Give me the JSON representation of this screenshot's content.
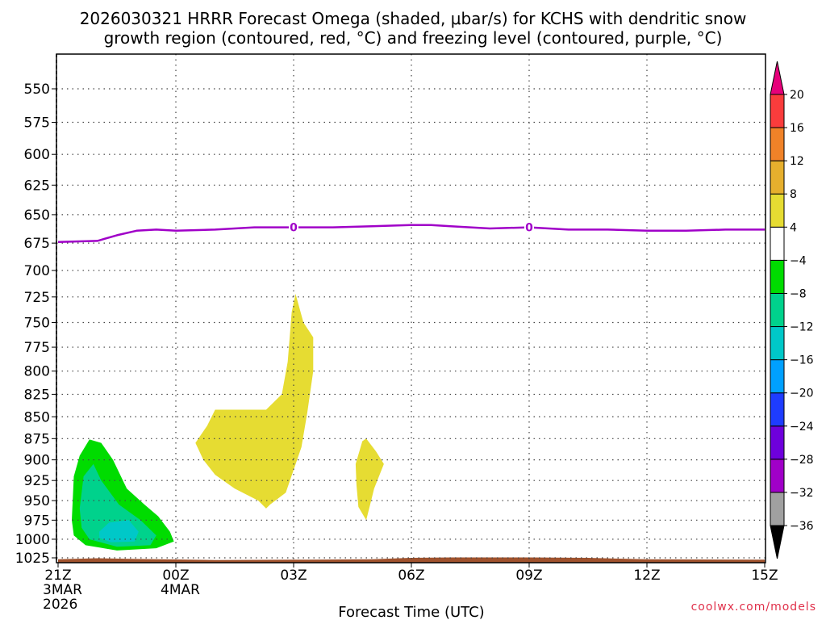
{
  "title_line1": "2026030321 HRRR Forecast Omega (shaded, μbar/s) for KCHS with dendritic snow",
  "title_line2": "growth region (contoured, red, °C) and freezing level (contoured, purple, °C)",
  "credit": "coolwx.com/models",
  "chart_data": {
    "type": "time-height cross section",
    "title": "2026030321 HRRR Forecast Omega (shaded, μbar/s) for KCHS with dendritic snow growth region (contoured, red, °C) and freezing level (contoured, purple, °C)",
    "xlabel": "Forecast Time (UTC)",
    "ylabel": "",
    "xlim_hours": [
      0,
      18
    ],
    "ylim_hpa": [
      535,
      1035
    ],
    "y_scale": "log-pressure, inverted",
    "grid": true,
    "x_ticks": [
      {
        "hour": 0,
        "label": "21Z",
        "sub1": "3MAR",
        "sub2": "2026"
      },
      {
        "hour": 3,
        "label": "00Z",
        "sub1": "4MAR",
        "sub2": ""
      },
      {
        "hour": 6,
        "label": "03Z",
        "sub1": "",
        "sub2": ""
      },
      {
        "hour": 9,
        "label": "06Z",
        "sub1": "",
        "sub2": ""
      },
      {
        "hour": 12,
        "label": "09Z",
        "sub1": "",
        "sub2": ""
      },
      {
        "hour": 15,
        "label": "12Z",
        "sub1": "",
        "sub2": ""
      },
      {
        "hour": 18,
        "label": "15Z",
        "sub1": "",
        "sub2": ""
      }
    ],
    "y_ticks": [
      550,
      575,
      600,
      625,
      650,
      675,
      700,
      725,
      750,
      775,
      800,
      825,
      850,
      875,
      900,
      925,
      950,
      975,
      1000,
      1025
    ],
    "colorbar": {
      "levels": [
        -36,
        -32,
        -28,
        -24,
        -20,
        -16,
        -12,
        -8,
        -4,
        4,
        8,
        12,
        16,
        20
      ],
      "colors": [
        "#000000",
        "#a0a0a0",
        "#a000c8",
        "#6e00dc",
        "#1e3cff",
        "#00a0ff",
        "#00c8c8",
        "#00d28c",
        "#00dc00",
        "#ffffff",
        "#e6dc32",
        "#e6af2d",
        "#f08228",
        "#fa3c3c",
        "#e6007a"
      ]
    },
    "freezing_level": {
      "label": "0",
      "label_hours": [
        6.0,
        12.0
      ],
      "points": [
        [
          0.0,
          674
        ],
        [
          1.0,
          673
        ],
        [
          1.5,
          668
        ],
        [
          2.0,
          664
        ],
        [
          2.5,
          663
        ],
        [
          3.0,
          664
        ],
        [
          4.0,
          663
        ],
        [
          5.0,
          661
        ],
        [
          6.0,
          661
        ],
        [
          7.0,
          661
        ],
        [
          8.0,
          660
        ],
        [
          9.0,
          659
        ],
        [
          9.5,
          659
        ],
        [
          10.0,
          660
        ],
        [
          11.0,
          662
        ],
        [
          12.0,
          661
        ],
        [
          13.0,
          663
        ],
        [
          14.0,
          663
        ],
        [
          15.0,
          664
        ],
        [
          16.0,
          664
        ],
        [
          17.0,
          663
        ],
        [
          18.0,
          663
        ]
      ]
    },
    "omega_regions": [
      {
        "value_bin": "4 to 8",
        "color": "#e6dc32",
        "points": [
          [
            3.5,
            880
          ],
          [
            3.8,
            860
          ],
          [
            4.0,
            842
          ],
          [
            5.0,
            842
          ],
          [
            5.3,
            842
          ],
          [
            5.7,
            825
          ],
          [
            5.85,
            790
          ],
          [
            5.95,
            740
          ],
          [
            6.05,
            722
          ],
          [
            6.25,
            750
          ],
          [
            6.5,
            765
          ],
          [
            6.5,
            800
          ],
          [
            6.35,
            845
          ],
          [
            6.2,
            885
          ],
          [
            5.8,
            940
          ],
          [
            5.4,
            955
          ],
          [
            5.3,
            960
          ],
          [
            5.1,
            950
          ],
          [
            4.5,
            935
          ],
          [
            4.0,
            918
          ],
          [
            3.7,
            900
          ]
        ]
      },
      {
        "value_bin": "4 to 8",
        "color": "#e6dc32",
        "points": [
          [
            7.75,
            878
          ],
          [
            7.85,
            875
          ],
          [
            8.1,
            890
          ],
          [
            8.3,
            905
          ],
          [
            8.05,
            935
          ],
          [
            7.95,
            955
          ],
          [
            7.85,
            975
          ],
          [
            7.65,
            958
          ],
          [
            7.6,
            930
          ],
          [
            7.58,
            905
          ]
        ]
      },
      {
        "value_bin": "-8 to -4",
        "color": "#00dc00",
        "points": [
          [
            0.35,
            975
          ],
          [
            0.4,
            920
          ],
          [
            0.55,
            895
          ],
          [
            0.8,
            876
          ],
          [
            1.1,
            880
          ],
          [
            1.4,
            900
          ],
          [
            1.75,
            935
          ],
          [
            2.2,
            955
          ],
          [
            2.55,
            970
          ],
          [
            2.85,
            990
          ],
          [
            2.95,
            1003
          ],
          [
            2.5,
            1012
          ],
          [
            1.5,
            1015
          ],
          [
            0.7,
            1008
          ],
          [
            0.4,
            995
          ]
        ]
      },
      {
        "value_bin": "-12 to -8",
        "color": "#00d28c",
        "points": [
          [
            0.55,
            960
          ],
          [
            0.65,
            920
          ],
          [
            0.9,
            905
          ],
          [
            1.1,
            925
          ],
          [
            1.55,
            955
          ],
          [
            2.1,
            975
          ],
          [
            2.5,
            995
          ],
          [
            2.35,
            1008
          ],
          [
            1.5,
            1010
          ],
          [
            0.8,
            1000
          ],
          [
            0.6,
            985
          ]
        ]
      },
      {
        "value_bin": "-16 to -12",
        "color": "#00c8c8",
        "points": [
          [
            1.05,
            990
          ],
          [
            1.3,
            978
          ],
          [
            1.8,
            975
          ],
          [
            2.05,
            990
          ],
          [
            1.95,
            1003
          ],
          [
            1.35,
            1004
          ],
          [
            1.05,
            998
          ]
        ]
      }
    ],
    "surface_terrain": {
      "color": "#a0522d",
      "points": [
        [
          0.0,
          1027
        ],
        [
          1.0,
          1025.5
        ],
        [
          2.0,
          1026.5
        ],
        [
          4.0,
          1028
        ],
        [
          6.0,
          1027.5
        ],
        [
          8.0,
          1027
        ],
        [
          9.0,
          1025
        ],
        [
          10.0,
          1024.5
        ],
        [
          12.0,
          1024.5
        ],
        [
          13.5,
          1025
        ],
        [
          15.0,
          1027
        ],
        [
          18.0,
          1027.5
        ]
      ]
    }
  }
}
